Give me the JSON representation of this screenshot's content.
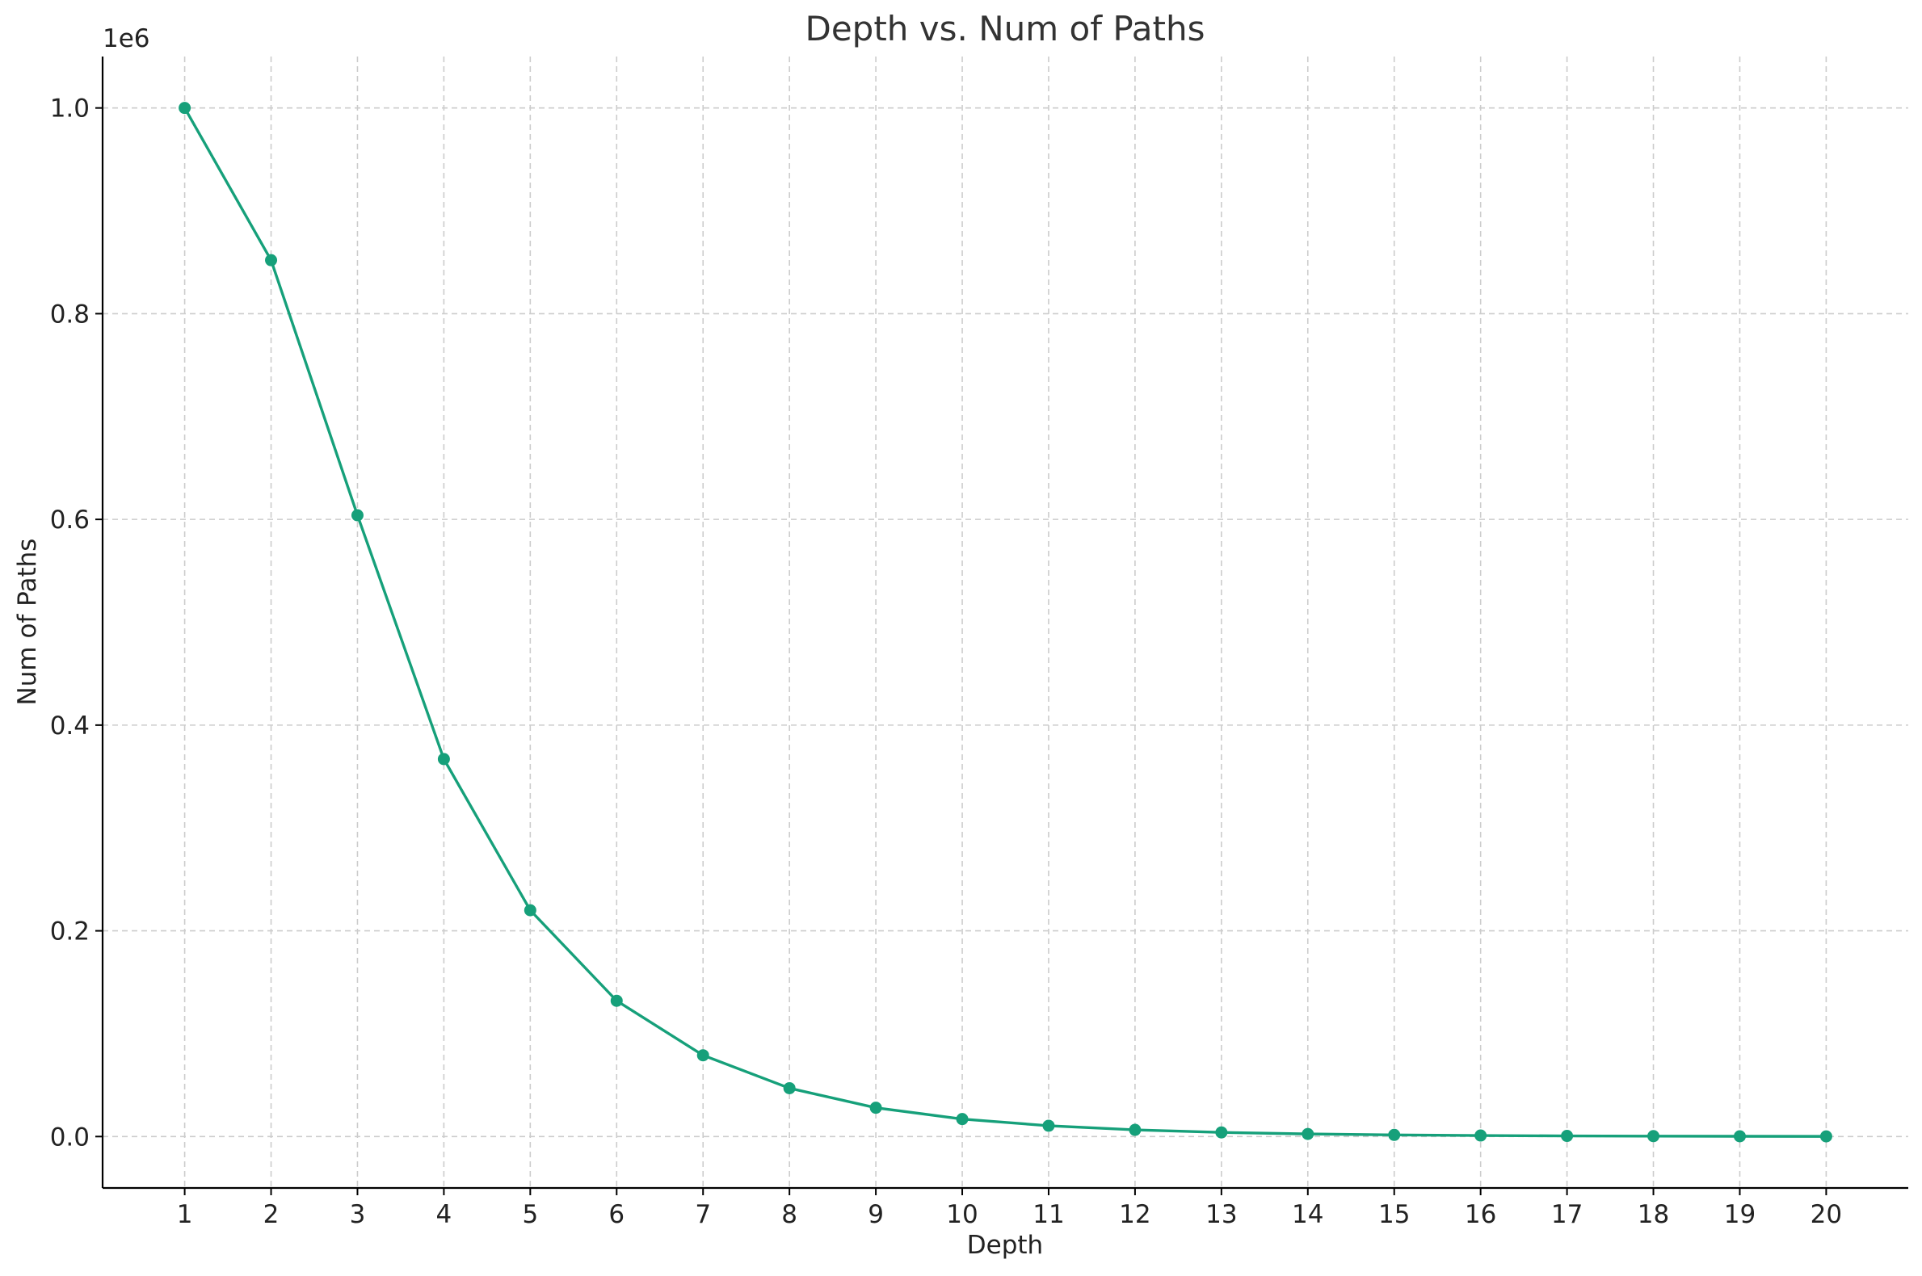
{
  "chart_data": {
    "type": "line",
    "title": "Depth vs. Num of Paths",
    "xlabel": "Depth",
    "ylabel": "Num of Paths",
    "y_offset_label": "1e6",
    "y_scale_factor": 1000000,
    "xlim": [
      0.05,
      20.95
    ],
    "ylim": [
      -50000,
      1050000
    ],
    "grid": true,
    "x_ticks": [
      1,
      2,
      3,
      4,
      5,
      6,
      7,
      8,
      9,
      10,
      11,
      12,
      13,
      14,
      15,
      16,
      17,
      18,
      19,
      20
    ],
    "y_ticks": [
      {
        "value": 0,
        "label": "0.0"
      },
      {
        "value": 200000,
        "label": "0.2"
      },
      {
        "value": 400000,
        "label": "0.4"
      },
      {
        "value": 600000,
        "label": "0.6"
      },
      {
        "value": 800000,
        "label": "0.8"
      },
      {
        "value": 1000000,
        "label": "1.0"
      }
    ],
    "series": [
      {
        "color": "#16a07a",
        "x": [
          1,
          2,
          3,
          4,
          5,
          6,
          7,
          8,
          9,
          10,
          11,
          12,
          13,
          14,
          15,
          16,
          17,
          18,
          19,
          20
        ],
        "y": [
          1000000,
          852000,
          604000,
          367000,
          220000,
          132000,
          79000,
          47000,
          28000,
          17000,
          10500,
          6500,
          4000,
          2500,
          1600,
          1000,
          600,
          400,
          250,
          150
        ]
      }
    ]
  }
}
